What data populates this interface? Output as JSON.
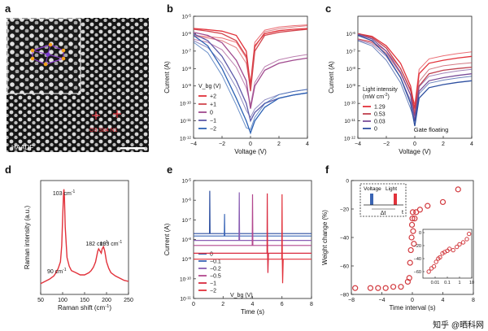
{
  "figure": {
    "panels": [
      "a",
      "b",
      "c",
      "d",
      "e",
      "f"
    ],
    "watermark": "知乎 @晒科网"
  },
  "panel_a": {
    "label": "a",
    "caption": "HAADF",
    "atom_label": "O3 Sb4 N1"
  },
  "chart_data": [
    {
      "id": "b",
      "type": "line",
      "title": "",
      "xlabel": "Voltage (V)",
      "ylabel": "Current (A)",
      "yscale": "log",
      "xlim": [
        -4,
        4
      ],
      "ylim": [
        1e-12,
        1e-05
      ],
      "xticks": [
        "−4",
        "−2",
        "0",
        "2",
        "4"
      ],
      "yticks": [
        "10^{-12}",
        "10^{-11}",
        "10^{-10}",
        "10^{-9}",
        "10^{-8}",
        "10^{-7}",
        "10^{-6}",
        "10^{-5}"
      ],
      "legend_title": "V_bg (V)",
      "series": [
        {
          "name": "+2",
          "color": "#e2313a",
          "x": [
            -4,
            -3,
            -2,
            -1,
            -0.3,
            0,
            0.3,
            1,
            2,
            3,
            4
          ],
          "y": [
            2e-06,
            1.7e-06,
            1.4e-06,
            8e-07,
            1e-07,
            1e-09,
            2e-07,
            1e-06,
            1.5e-06,
            1.8e-06,
            2e-06
          ]
        },
        {
          "name": "+1",
          "color": "#d2474f",
          "x": [
            -4,
            -3,
            -2,
            -1,
            -0.3,
            0,
            0.3,
            1,
            2,
            3,
            4
          ],
          "y": [
            1.8e-06,
            1.4e-06,
            1e-06,
            4e-07,
            5e-08,
            5e-10,
            1e-07,
            8e-07,
            1.2e-06,
            1.5e-06,
            1.8e-06
          ]
        },
        {
          "name": "0",
          "color": "#a04a8e",
          "x": [
            -4,
            -3,
            -2,
            -1,
            -0.3,
            0,
            0.3,
            1,
            2,
            3,
            4
          ],
          "y": [
            1.2e-06,
            8e-07,
            3e-07,
            3e-08,
            2e-09,
            5e-11,
            1e-09,
            8e-09,
            2e-08,
            3e-08,
            4e-08
          ]
        },
        {
          "name": "−1",
          "color": "#5e5aa8",
          "x": [
            -4,
            -3,
            -2,
            -1,
            -0.3,
            0,
            0.3,
            1,
            2,
            3,
            4
          ],
          "y": [
            1e-06,
            4e-07,
            5e-08,
            2e-09,
            1e-10,
            1e-11,
            3e-11,
            1e-10,
            2e-10,
            3e-10,
            4e-10
          ]
        },
        {
          "name": "−2",
          "color": "#2d62b4",
          "x": [
            -4,
            -3,
            -2,
            -1,
            -0.3,
            0,
            0.3,
            1,
            2,
            3,
            4
          ],
          "y": [
            8e-07,
            2e-07,
            1e-08,
            2e-10,
            1e-11,
            2e-12,
            1e-11,
            6e-11,
            2e-10,
            3e-10,
            4e-10
          ]
        }
      ]
    },
    {
      "id": "c",
      "type": "line",
      "title": "",
      "xlabel": "Voltage (V)",
      "ylabel": "Current (A)",
      "yscale": "log",
      "xlim": [
        -4,
        4
      ],
      "ylim": [
        1e-12,
        1e-05
      ],
      "xticks": [
        "−4",
        "−2",
        "0",
        "2",
        "4"
      ],
      "yticks": [
        "10^{-12}",
        "10^{-11}",
        "10^{-10}",
        "10^{-9}",
        "10^{-8}",
        "10^{-7}",
        "10^{-6}"
      ],
      "legend_title_1": "Light intensity",
      "legend_title_2": "(mW cm^{-2})",
      "annotation": "Gate floating",
      "series": [
        {
          "name": "1.29",
          "color": "#e2313a",
          "x": [
            -4,
            -3,
            -2,
            -1,
            -0.3,
            0,
            0.3,
            1,
            2,
            3,
            4
          ],
          "y": [
            1e-06,
            7e-07,
            2e-07,
            2e-08,
            1e-09,
            5e-11,
            5e-09,
            2e-08,
            3e-08,
            4e-08,
            5e-08
          ]
        },
        {
          "name": "0.53",
          "color": "#c0404e",
          "x": [
            -4,
            -3,
            -2,
            -1,
            -0.3,
            0,
            0.3,
            1,
            2,
            3,
            4
          ],
          "y": [
            1e-06,
            6e-07,
            1.5e-07,
            1e-08,
            6e-10,
            2e-11,
            1e-09,
            5e-09,
            8e-09,
            1e-08,
            1.2e-08
          ]
        },
        {
          "name": "0.03",
          "color": "#7a4f9a",
          "x": [
            -4,
            -3,
            -2,
            -1,
            -0.3,
            0,
            0.3,
            1,
            2,
            3,
            4
          ],
          "y": [
            9e-07,
            5e-07,
            1e-07,
            6e-09,
            3e-10,
            1e-11,
            5e-10,
            2e-09,
            3e-09,
            4e-09,
            5e-09
          ]
        },
        {
          "name": "0",
          "color": "#2d4fa0",
          "x": [
            -4,
            -3,
            -2,
            -1,
            -0.3,
            0,
            0.3,
            1,
            2,
            3,
            4
          ],
          "y": [
            8e-07,
            4e-07,
            6e-08,
            3e-09,
            1e-10,
            5e-12,
            2e-10,
            8e-10,
            1.2e-09,
            1.6e-09,
            2e-09
          ]
        }
      ]
    },
    {
      "id": "d",
      "type": "line",
      "title": "",
      "xlabel": "Raman shift (cm^{-1})",
      "ylabel": "Raman intensity (a.u.)",
      "xlim": [
        50,
        250
      ],
      "ylim": [
        0,
        1.05
      ],
      "xticks": [
        "50",
        "100",
        "150",
        "200",
        "250"
      ],
      "annotations": [
        "103 cm^{-1}",
        "90 cm^{-1}",
        "182 cm^{-1}",
        "193 cm^{-1}"
      ],
      "series": [
        {
          "name": "Raman",
          "color": "#e2313a",
          "x": [
            50,
            60,
            70,
            80,
            85,
            90,
            95,
            98,
            100,
            102,
            103,
            104,
            106,
            110,
            115,
            120,
            130,
            140,
            150,
            160,
            165,
            170,
            175,
            180,
            182,
            185,
            188,
            190,
            193,
            196,
            200,
            205,
            210,
            220,
            230,
            240,
            250
          ],
          "y": [
            0.1,
            0.12,
            0.14,
            0.17,
            0.2,
            0.24,
            0.3,
            0.45,
            0.7,
            0.93,
            0.97,
            0.9,
            0.62,
            0.34,
            0.26,
            0.22,
            0.2,
            0.18,
            0.18,
            0.2,
            0.22,
            0.25,
            0.3,
            0.4,
            0.42,
            0.4,
            0.38,
            0.42,
            0.44,
            0.4,
            0.3,
            0.24,
            0.2,
            0.17,
            0.15,
            0.13,
            0.12
          ]
        }
      ]
    },
    {
      "id": "e",
      "type": "line",
      "title": "",
      "xlabel": "Time (s)",
      "ylabel": "Current (A)",
      "yscale": "log",
      "xlim": [
        0,
        8
      ],
      "ylim": [
        1e-11,
        1e-05
      ],
      "xticks": [
        "0",
        "2",
        "4",
        "6",
        "8"
      ],
      "yticks": [
        "10^{-11}",
        "10^{-10}",
        "10^{-9}",
        "10^{-8}",
        "10^{-7}",
        "10^{-6}",
        "10^{-5}"
      ],
      "legend_title": "V_bg (V)",
      "series": [
        {
          "name": "0",
          "color": "#2d4fa0",
          "baseline": 2e-08,
          "spike_t": 1.1,
          "spike_peak": 3e-06,
          "spike_dip": null
        },
        {
          "name": "−0.1",
          "color": "#3d68b8",
          "baseline": 1.5e-08,
          "spike_t": 2.1,
          "spike_peak": 2e-07,
          "spike_dip": null
        },
        {
          "name": "−0.2",
          "color": "#8a5db3",
          "baseline": 9e-09,
          "spike_t": 3.1,
          "spike_peak": 2.5e-06,
          "spike_dip": null
        },
        {
          "name": "−0.5",
          "color": "#b2478f",
          "baseline": 5e-09,
          "spike_t": 4.0,
          "spike_peak": 2e-06,
          "spike_dip": null
        },
        {
          "name": "−1",
          "color": "#d92a3f",
          "baseline": 2e-09,
          "spike_t": 5.0,
          "spike_peak": 2.2e-06,
          "spike_dip": 2e-10
        },
        {
          "name": "−2",
          "color": "#e2313a",
          "baseline": 1e-09,
          "spike_t": 6.0,
          "spike_peak": 2e-06,
          "spike_dip": 6e-11
        }
      ]
    },
    {
      "id": "f",
      "type": "scatter",
      "title": "",
      "xlabel": "Time interval (s)",
      "ylabel": "Weight change (%)",
      "xlim": [
        -8,
        8
      ],
      "ylim": [
        -85,
        5
      ],
      "xticks": [
        "−8",
        "−4",
        "0",
        "4",
        "8"
      ],
      "yticks": [
        "−80",
        "−60",
        "−40",
        "−20",
        "0"
      ],
      "schematic": {
        "voltage": "Voltage",
        "light": "Light",
        "dt": "Δt",
        "t": "t"
      },
      "series": [
        {
          "name": "main",
          "color": "#d23a3f",
          "x": [
            -7.5,
            -5.5,
            -4.5,
            -3.5,
            -2.5,
            -1.5,
            -0.6,
            -0.4,
            -0.3,
            -0.2,
            -0.1,
            -0.05,
            0,
            0.05,
            0.1,
            0.2,
            0.3,
            0.5,
            1,
            2,
            4,
            6
          ],
          "y": [
            -80,
            -80,
            -80,
            -80,
            -79,
            -79,
            -75,
            -72,
            -60,
            -50,
            -40,
            -30,
            -25,
            -20,
            -35,
            -45,
            -25,
            -20,
            -18,
            -15,
            -12,
            -2
          ]
        }
      ],
      "inset": {
        "xscale": "log",
        "xlim": [
          0.001,
          10
        ],
        "ylim": [
          -70,
          5
        ],
        "xticks": [
          "0.01",
          "0.1",
          "1",
          "10"
        ],
        "yticks": [
          "0",
          "−20",
          "−40",
          "−60"
        ],
        "x": [
          0.003,
          0.005,
          0.008,
          0.012,
          0.018,
          0.025,
          0.04,
          0.06,
          0.1,
          0.15,
          0.3,
          0.6,
          1,
          2,
          4,
          6
        ],
        "y": [
          -60,
          -55,
          -52,
          -45,
          -40,
          -38,
          -32,
          -30,
          -28,
          -25,
          -27,
          -22,
          -18,
          -15,
          -10,
          -2
        ]
      }
    }
  ]
}
